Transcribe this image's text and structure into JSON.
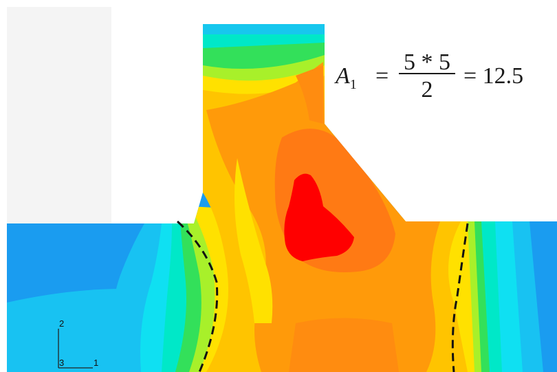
{
  "equation": {
    "lhs": "A",
    "lhs_sub": "1",
    "equals": "=",
    "numerator": "5 * 5",
    "denominator": "2",
    "result": "= 12.5"
  },
  "axes_triad": {
    "vertical_label": "2",
    "horizontal_label": "1",
    "origin_label": "3"
  },
  "colors": {
    "blue": "#1a9cf0",
    "light_blue": "#18c2f2",
    "cyan": "#0fe0f2",
    "aqua": "#00e8c8",
    "green": "#33e05a",
    "lime": "#a8f02a",
    "yellow": "#ffe100",
    "gold": "#ffc400",
    "orange": "#ff9a0a",
    "dark_orange": "#ff7a14",
    "red": "#ff0000",
    "backdrop": "#f4f4f4",
    "dashed_line": "#111111"
  }
}
